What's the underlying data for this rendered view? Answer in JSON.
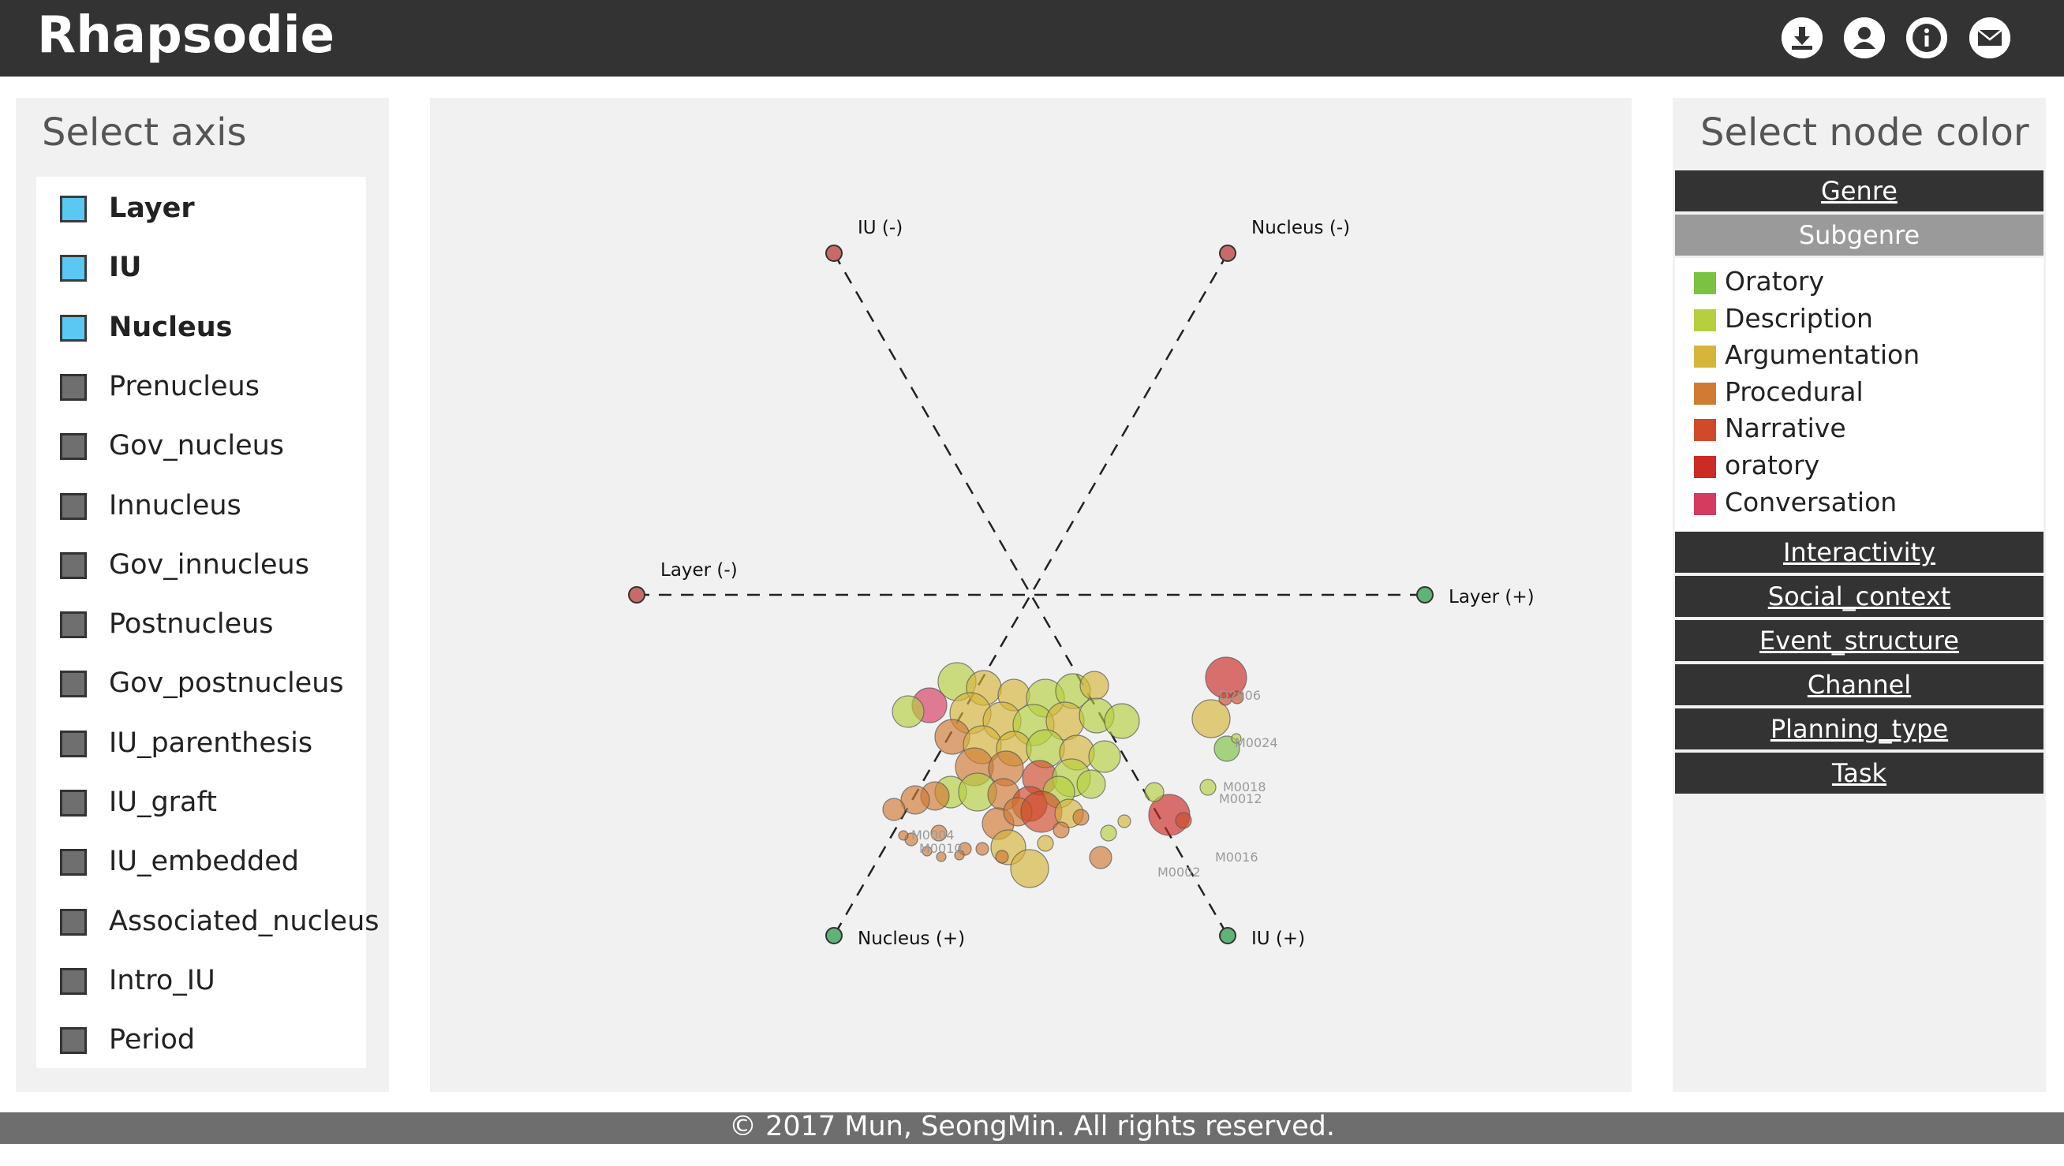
{
  "header": {
    "title": "Rhapsodie",
    "icons": [
      "download-icon",
      "user-icon",
      "info-icon",
      "mail-icon"
    ]
  },
  "left_panel": {
    "title": "Select axis",
    "axes": [
      {
        "label": "Layer",
        "selected": true
      },
      {
        "label": "IU",
        "selected": true
      },
      {
        "label": "Nucleus",
        "selected": true
      },
      {
        "label": "Prenucleus",
        "selected": false
      },
      {
        "label": "Gov_nucleus",
        "selected": false
      },
      {
        "label": "Innucleus",
        "selected": false
      },
      {
        "label": "Gov_innucleus",
        "selected": false
      },
      {
        "label": "Postnucleus",
        "selected": false
      },
      {
        "label": "Gov_postnucleus",
        "selected": false
      },
      {
        "label": "IU_parenthesis",
        "selected": false
      },
      {
        "label": "IU_graft",
        "selected": false
      },
      {
        "label": "IU_embedded",
        "selected": false
      },
      {
        "label": "Associated_nucleus",
        "selected": false
      },
      {
        "label": "Intro_IU",
        "selected": false
      },
      {
        "label": "Period",
        "selected": false
      }
    ]
  },
  "chart_data": {
    "type": "scatter",
    "axis_endpoints": [
      {
        "label": "IU (-)",
        "pole": "negative"
      },
      {
        "label": "Nucleus (-)",
        "pole": "negative"
      },
      {
        "label": "Layer (-)",
        "pole": "negative"
      },
      {
        "label": "Layer (+)",
        "pole": "positive"
      },
      {
        "label": "Nucleus (+)",
        "pole": "positive"
      },
      {
        "label": "IU (+)",
        "pole": "positive"
      }
    ],
    "pole_colors": {
      "negative": "#c96a6a",
      "positive": "#5fb376"
    },
    "node_labels_visible": [
      "D2006",
      "M0016",
      "M0018",
      "M0024",
      "M0012",
      "M0002",
      "M0004",
      "M0010"
    ]
  },
  "right_panel": {
    "title": "Select node color",
    "categories_top": [
      {
        "label": "Genre",
        "active": false
      },
      {
        "label": "Subgenre",
        "active": true
      }
    ],
    "legend": [
      {
        "label": "Oratory",
        "color": "#7cc242"
      },
      {
        "label": "Description",
        "color": "#b5cf3f"
      },
      {
        "label": "Argumentation",
        "color": "#d6b63a"
      },
      {
        "label": "Procedural",
        "color": "#d07a34"
      },
      {
        "label": "Narrative",
        "color": "#cf4a2a"
      },
      {
        "label": "oratory",
        "color": "#cc2a25"
      },
      {
        "label": "Conversation",
        "color": "#d53a5f"
      }
    ],
    "categories_bottom": [
      {
        "label": "Interactivity"
      },
      {
        "label": "Social_context"
      },
      {
        "label": "Event_structure"
      },
      {
        "label": "Channel"
      },
      {
        "label": "Planning_type"
      },
      {
        "label": "Task"
      }
    ]
  },
  "footer": {
    "text": "© 2017 Mun, SeongMin. All rights reserved."
  }
}
